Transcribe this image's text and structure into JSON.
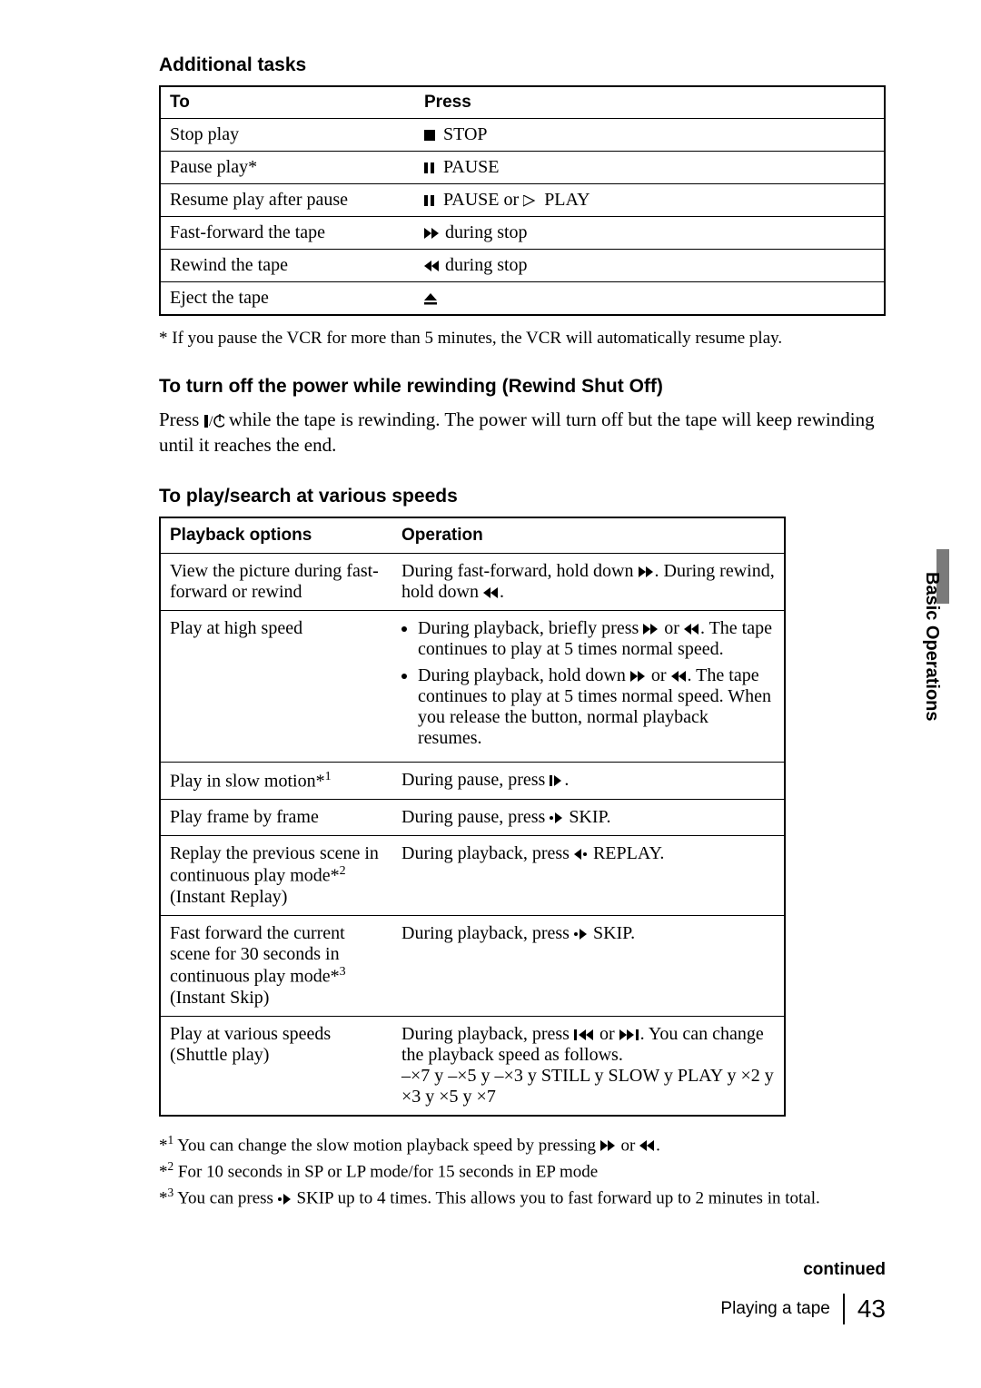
{
  "section1_heading": "Additional tasks",
  "tasks_table": {
    "headers": [
      "To",
      "Press"
    ],
    "rows": [
      {
        "to": "Stop play",
        "press_text": "STOP",
        "icon": "stop"
      },
      {
        "to": "Pause play*",
        "press_text": "PAUSE",
        "icon": "pause"
      },
      {
        "to": "Resume play after pause",
        "press_text": "PAUSE or",
        "icon": "pause",
        "press_text2": "PLAY",
        "icon2": "play"
      },
      {
        "to": "Fast-forward the tape",
        "press_text": "during stop",
        "icon": "ff"
      },
      {
        "to": "Rewind the tape",
        "press_text": "during stop",
        "icon": "rew"
      },
      {
        "to": "Eject the tape",
        "press_text": "",
        "icon": "eject"
      }
    ]
  },
  "footnote1": "* If you pause the VCR for more than 5 minutes, the VCR will automatically resume play.",
  "section2_heading": "To turn off the power while rewinding (Rewind Shut Off)",
  "rewind_text_pre": "Press ",
  "rewind_text_post": " while the tape is rewinding.  The power will turn off but the tape will keep rewinding until it reaches the end.",
  "section3_heading": "To play/search at various speeds",
  "speeds_table": {
    "headers": [
      "Playback options",
      "Operation"
    ],
    "rows": [
      {
        "opt": "View the picture during fast-forward or rewind",
        "op_plain_pre": "During fast-forward, hold down ",
        "op_icon1": "ff",
        "op_plain_mid": ".  During rewind, hold down ",
        "op_icon2": "rew",
        "op_plain_post": "."
      },
      {
        "opt": "Play at high speed",
        "op_list": [
          {
            "pre": "During playback, briefly press ",
            "i1": "ff",
            "mid": " or ",
            "i2": "rew",
            "post": ".  The tape continues to play at 5 times normal speed."
          },
          {
            "pre": "During playback, hold down ",
            "i1": "ff",
            "mid": " or ",
            "i2": "rew",
            "post": ".  The tape continues to play at 5 times normal speed.  When you release the button, normal playback resumes."
          }
        ]
      },
      {
        "opt": "Play in slow motion*",
        "opt_sup": "1",
        "op_plain_pre": "During pause, press ",
        "op_icon1": "slow",
        "op_plain_post": "."
      },
      {
        "opt": "Play frame by frame",
        "op_plain_pre": "During pause, press ",
        "op_icon1": "skip-fwd",
        "op_plain_post": " SKIP."
      },
      {
        "opt": "Replay the previous scene in continuous play mode*",
        "opt_sup": "2",
        "opt_post": " (Instant Replay)",
        "op_plain_pre": "During playback, press ",
        "op_icon1": "skip-back",
        "op_plain_post": " REPLAY."
      },
      {
        "opt": "Fast forward the current scene for 30 seconds in continuous play mode*",
        "opt_sup": "3",
        "opt_post": " (Instant Skip)",
        "op_plain_pre": "During playback, press ",
        "op_icon1": "skip-fwd",
        "op_plain_post": " SKIP."
      },
      {
        "opt": "Play at various speeds (Shuttle play)",
        "op_plain_pre": "During playback, press ",
        "op_icon1": "prev",
        "op_plain_mid": " or ",
        "op_icon2": "next",
        "op_plain_post": ".  You can change the playback speed as follows.",
        "op_extra": "–×7 y   –×5 y   –×3 y   STILL y   SLOW y   PLAY y   ×2 y   ×3 y   ×5 y   ×7"
      }
    ]
  },
  "footnotes2": [
    {
      "sup": "1",
      "pre": " You can change the slow motion playback speed by pressing ",
      "i1": "ff",
      "mid": " or ",
      "i2": "rew",
      "post": "."
    },
    {
      "sup": "2",
      "text": " For 10 seconds in SP or LP mode/for 15 seconds in EP mode"
    },
    {
      "sup": "3",
      "pre": " You can press ",
      "i1": "skip-fwd",
      "post": " SKIP up to 4 times.  This allows you to fast forward up to 2 minutes in total."
    }
  ],
  "side_tab": "Basic Operations",
  "continued": "continued",
  "footer_title": "Playing a tape",
  "page_number": "43",
  "colors": {
    "tab_gray": "#7a7a7a",
    "black": "#000000",
    "white": "#ffffff"
  }
}
